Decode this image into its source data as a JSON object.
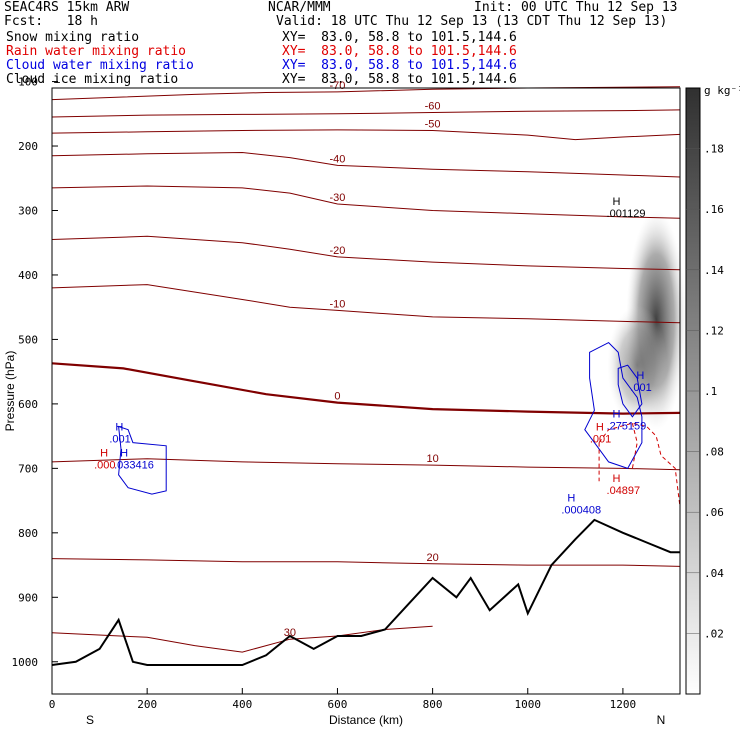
{
  "header": {
    "model": "SEAC4RS 15km ARW",
    "center": "NCAR/MMM",
    "init": "Init: 00 UTC Thu 12 Sep 13",
    "fcst": "Fcst:   18 h",
    "valid": "Valid: 18 UTC Thu 12 Sep 13 (13 CDT Thu 12 Sep 13)",
    "fields": [
      {
        "label": "Snow mixing ratio",
        "xy": "XY=  83.0, 58.8 to 101.5,144.6",
        "color": "#000000"
      },
      {
        "label": "Rain water mixing ratio",
        "xy": "XY=  83.0, 58.8 to 101.5,144.6",
        "color": "#e00000"
      },
      {
        "label": "Cloud water mixing ratio",
        "xy": "XY=  83.0, 58.8 to 101.5,144.6",
        "color": "#0000e0"
      },
      {
        "label": "Cloud ice mixing ratio",
        "xy": "XY=  83.0, 58.8 to 101.5,144.6",
        "color": "#000000"
      }
    ]
  },
  "chart_data": {
    "type": "cross-section",
    "xlabel": "Distance (km)",
    "ylabel": "Pressure (hPa)",
    "xlim": [
      0,
      1320
    ],
    "ylim": [
      1050,
      110
    ],
    "xticks": [
      0,
      200,
      400,
      600,
      800,
      1000,
      1200
    ],
    "yticks": [
      100,
      200,
      300,
      400,
      500,
      600,
      700,
      800,
      900,
      1000
    ],
    "x_end_labels": {
      "left": "S",
      "right": "N"
    },
    "colorbar": {
      "unit": "g kg⁻¹",
      "ticks": [
        ".18",
        ".16",
        ".14",
        ".12",
        ".1",
        ".08",
        ".06",
        ".04",
        ".02"
      ]
    },
    "isotherms": [
      {
        "label": "-70",
        "points": [
          [
            0,
            128
          ],
          [
            150,
            124
          ],
          [
            300,
            120
          ],
          [
            450,
            117
          ],
          [
            600,
            116
          ],
          [
            800,
            112
          ],
          [
            1000,
            110
          ],
          [
            1320,
            108
          ]
        ]
      },
      {
        "label": "-60",
        "points": [
          [
            0,
            155
          ],
          [
            200,
            152
          ],
          [
            400,
            151
          ],
          [
            600,
            150
          ],
          [
            800,
            148
          ],
          [
            1000,
            146
          ],
          [
            1200,
            145
          ],
          [
            1320,
            144
          ]
        ]
      },
      {
        "label": "-50",
        "points": [
          [
            0,
            180
          ],
          [
            200,
            178
          ],
          [
            400,
            176
          ],
          [
            600,
            175
          ],
          [
            800,
            176
          ],
          [
            1000,
            183
          ],
          [
            1100,
            190
          ],
          [
            1200,
            186
          ],
          [
            1320,
            182
          ]
        ]
      },
      {
        "label": "-40",
        "points": [
          [
            0,
            215
          ],
          [
            200,
            212
          ],
          [
            400,
            210
          ],
          [
            500,
            218
          ],
          [
            600,
            230
          ],
          [
            800,
            236
          ],
          [
            1000,
            240
          ],
          [
            1200,
            245
          ],
          [
            1320,
            248
          ]
        ]
      },
      {
        "label": "-30",
        "points": [
          [
            0,
            265
          ],
          [
            200,
            262
          ],
          [
            400,
            265
          ],
          [
            500,
            273
          ],
          [
            600,
            290
          ],
          [
            800,
            300
          ],
          [
            1000,
            305
          ],
          [
            1200,
            310
          ],
          [
            1320,
            312
          ]
        ]
      },
      {
        "label": "-20",
        "points": [
          [
            0,
            345
          ],
          [
            200,
            340
          ],
          [
            400,
            350
          ],
          [
            500,
            360
          ],
          [
            600,
            372
          ],
          [
            800,
            380
          ],
          [
            1000,
            386
          ],
          [
            1200,
            390
          ],
          [
            1320,
            392
          ]
        ]
      },
      {
        "label": "-10",
        "points": [
          [
            0,
            420
          ],
          [
            200,
            415
          ],
          [
            400,
            438
          ],
          [
            500,
            450
          ],
          [
            600,
            455
          ],
          [
            800,
            465
          ],
          [
            1000,
            468
          ],
          [
            1200,
            472
          ],
          [
            1320,
            474
          ]
        ]
      },
      {
        "label": "0",
        "bold": true,
        "points": [
          [
            0,
            537
          ],
          [
            150,
            545
          ],
          [
            300,
            565
          ],
          [
            450,
            585
          ],
          [
            600,
            598
          ],
          [
            800,
            608
          ],
          [
            1000,
            612
          ],
          [
            1200,
            615
          ],
          [
            1320,
            614
          ]
        ]
      },
      {
        "label": "10",
        "points": [
          [
            0,
            690
          ],
          [
            200,
            685
          ],
          [
            400,
            690
          ],
          [
            600,
            693
          ],
          [
            800,
            695
          ],
          [
            1000,
            698
          ],
          [
            1200,
            700
          ],
          [
            1320,
            702
          ]
        ]
      },
      {
        "label": "20",
        "points": [
          [
            0,
            840
          ],
          [
            200,
            842
          ],
          [
            400,
            845
          ],
          [
            600,
            845
          ],
          [
            800,
            848
          ],
          [
            1000,
            850
          ],
          [
            1200,
            850
          ],
          [
            1320,
            852
          ]
        ]
      },
      {
        "label": "30",
        "points": [
          [
            0,
            955
          ],
          [
            200,
            962
          ],
          [
            300,
            975
          ],
          [
            400,
            985
          ],
          [
            500,
            965
          ],
          [
            600,
            960
          ],
          [
            700,
            950
          ],
          [
            800,
            945
          ]
        ]
      }
    ],
    "terrain": [
      [
        0,
        1005
      ],
      [
        50,
        1000
      ],
      [
        100,
        980
      ],
      [
        140,
        935
      ],
      [
        170,
        1000
      ],
      [
        200,
        1005
      ],
      [
        400,
        1005
      ],
      [
        450,
        990
      ],
      [
        500,
        960
      ],
      [
        550,
        980
      ],
      [
        600,
        960
      ],
      [
        650,
        960
      ],
      [
        700,
        950
      ],
      [
        750,
        910
      ],
      [
        800,
        870
      ],
      [
        850,
        900
      ],
      [
        880,
        870
      ],
      [
        920,
        920
      ],
      [
        980,
        880
      ],
      [
        1000,
        925
      ],
      [
        1050,
        850
      ],
      [
        1100,
        810
      ],
      [
        1140,
        780
      ],
      [
        1200,
        800
      ],
      [
        1250,
        815
      ],
      [
        1300,
        830
      ],
      [
        1320,
        830
      ]
    ],
    "cloud_water_max_labels": [
      {
        "label": ".001",
        "x": 150,
        "p": 660
      },
      {
        "label": ".033416",
        "x": 160,
        "p": 700
      },
      {
        "label": ".275159",
        "x": 1195,
        "p": 640
      },
      {
        "label": ".001",
        "x": 1245,
        "p": 580
      },
      {
        "label": ".000408",
        "x": 1100,
        "p": 770
      }
    ],
    "rain_max_labels": [
      {
        "label": ".001",
        "x": 1160,
        "p": 660
      },
      {
        "label": ".04897",
        "x": 1195,
        "p": 740
      },
      {
        "label": ".000",
        "x": 118,
        "p": 700
      }
    ],
    "snow_max_labels": [
      {
        "label": ".001129",
        "x": 1195,
        "p": 310
      }
    ]
  }
}
